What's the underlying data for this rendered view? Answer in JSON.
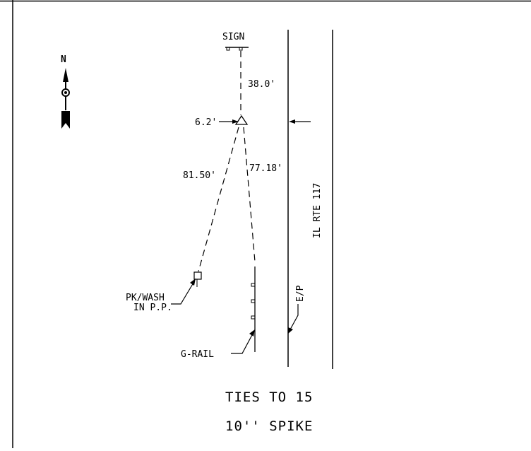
{
  "labels": {
    "sign": "SIGN",
    "north": "N",
    "dist_sign": "38.0'",
    "dist_offset": "6.2'",
    "dist_pk": "81.50'",
    "dist_grail": "77.18'",
    "route": "IL RTE 117",
    "edge": "E/P",
    "pk_line1": "PK/WASH",
    "pk_line2": "IN P.P.",
    "grail": "G-RAIL"
  },
  "caption": {
    "line1": "TIES TO 15",
    "line2": "10'' SPIKE"
  },
  "colors": {
    "ink": "#000000",
    "background": "#ffffff"
  }
}
